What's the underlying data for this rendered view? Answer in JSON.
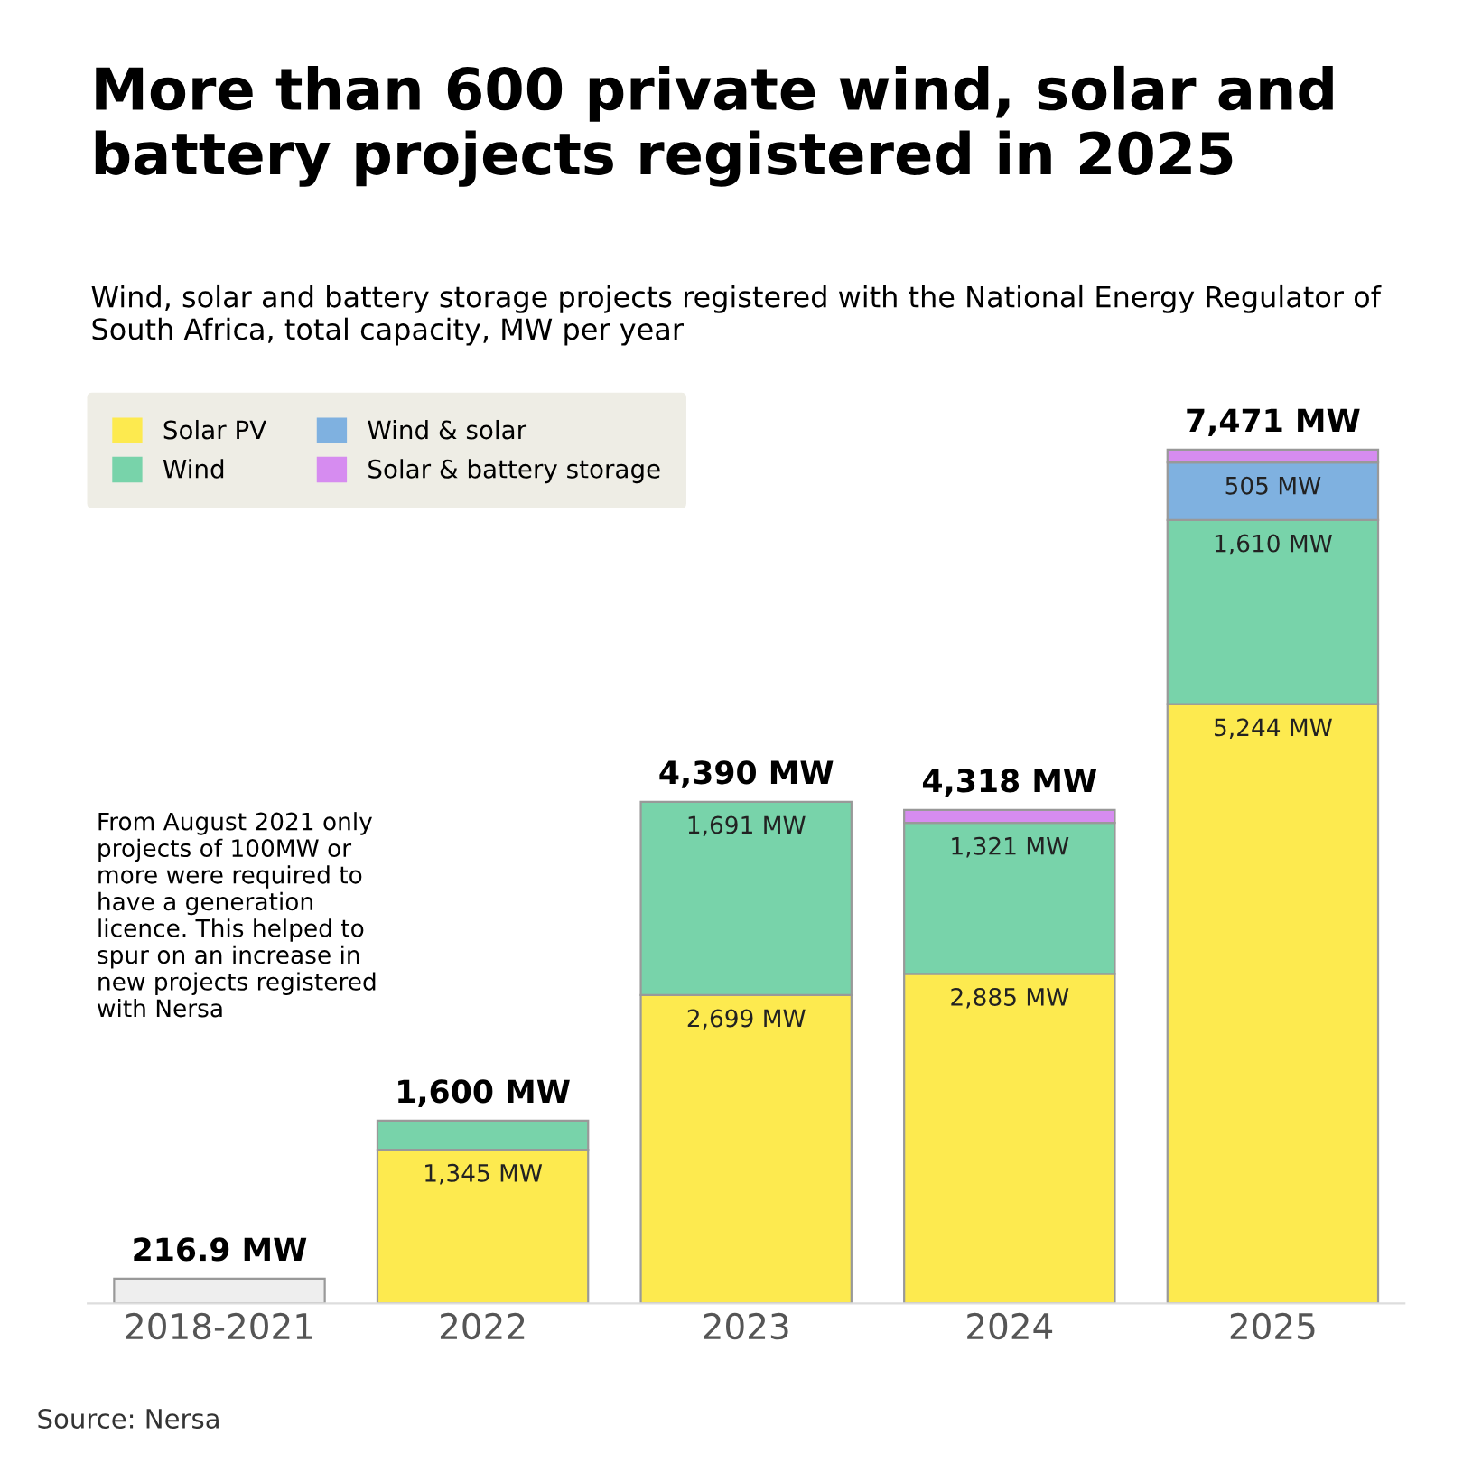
{
  "chart_data": {
    "type": "bar",
    "stacked": true,
    "title": "More than 600 private wind, solar and battery projects registered in 2025",
    "subtitle": "Wind, solar and battery storage projects registered with the National Energy Regulator of South Africa, total capacity, MW per year",
    "categories": [
      "2018-2021",
      "2022",
      "2023",
      "2024",
      "2025"
    ],
    "series": [
      {
        "color": "#eeeeee",
        "values": [
          216.9,
          null,
          null,
          null,
          null
        ]
      },
      {
        "name": "Solar PV",
        "color": "#fdea4f",
        "values": [
          null,
          1345,
          2699,
          2885,
          5244
        ],
        "value_labels": [
          null,
          "1,345 MW",
          "2,699 MW",
          "2,885 MW",
          "5,244 MW"
        ]
      },
      {
        "name": "Wind",
        "color": "#78d3aa",
        "values": [
          null,
          255,
          1691,
          1321,
          1610
        ],
        "value_labels": [
          null,
          null,
          "1,691 MW",
          "1,321 MW",
          "1,610 MW"
        ]
      },
      {
        "name": "Wind & solar",
        "color": "#7fb1e0",
        "values": [
          null,
          null,
          null,
          null,
          505
        ],
        "value_labels": [
          null,
          null,
          null,
          null,
          "505 MW"
        ]
      },
      {
        "name": "Solar & battery storage",
        "color": "#d68cf0",
        "values": [
          null,
          null,
          null,
          112,
          112
        ],
        "value_labels": [
          null,
          null,
          null,
          null,
          null
        ]
      }
    ],
    "totals": [
      "216.9 MW",
      "1,600 MW",
      "4,390 MW",
      "4,318 MW",
      "7,471 MW"
    ],
    "ylim": [
      0,
      8000
    ],
    "tick_labels": "x",
    "grid": false,
    "legend": "top left",
    "annotations": [
      "From August 2021 only projects of 100MW or more were required to have a generation licence. This helped to spur on an increase in new projects registered with Nersa",
      "Source: Nersa"
    ]
  }
}
